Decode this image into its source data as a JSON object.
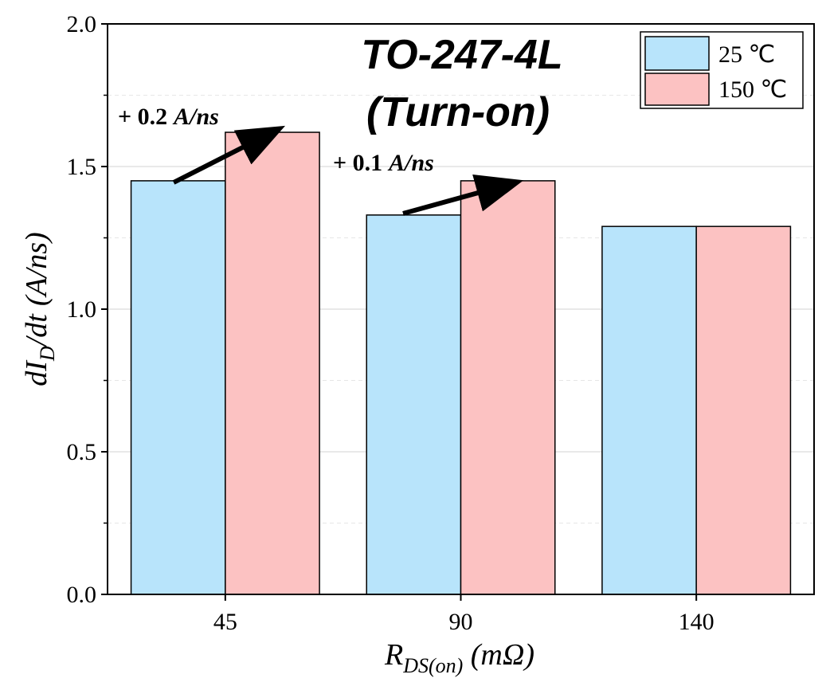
{
  "chart_data": {
    "type": "bar",
    "title": "TO-247-4L",
    "subtitle": "(Turn-on)",
    "xlabel": {
      "main": "R",
      "sub": "DS(on)",
      "unit": " (mΩ)"
    },
    "ylabel": {
      "pre": "dI",
      "sub": "D",
      "post": "/dt",
      "unit": "(A/ns)"
    },
    "categories": [
      "45",
      "90",
      "140"
    ],
    "series": [
      {
        "name": "25 ℃",
        "color": "#b8e4fb",
        "values": [
          1.45,
          1.33,
          1.29
        ]
      },
      {
        "name": "150 ℃",
        "color": "#fcc2c2",
        "values": [
          1.62,
          1.45,
          1.29
        ]
      }
    ],
    "ylim": [
      0,
      2.0
    ],
    "yticks": [
      "0.0",
      "0.5",
      "1.0",
      "1.5",
      "2.0"
    ],
    "grid": true,
    "legend_position": "top-right",
    "annotations": [
      {
        "text_sign": "+ ",
        "text_value": "0.2",
        "text_unit": "A/ns",
        "category": "45",
        "from": 1.45,
        "to": 1.62
      },
      {
        "text_sign": "+ ",
        "text_value": "0.1",
        "text_unit": "A/ns",
        "category": "90",
        "from": 1.33,
        "to": 1.45
      }
    ]
  }
}
